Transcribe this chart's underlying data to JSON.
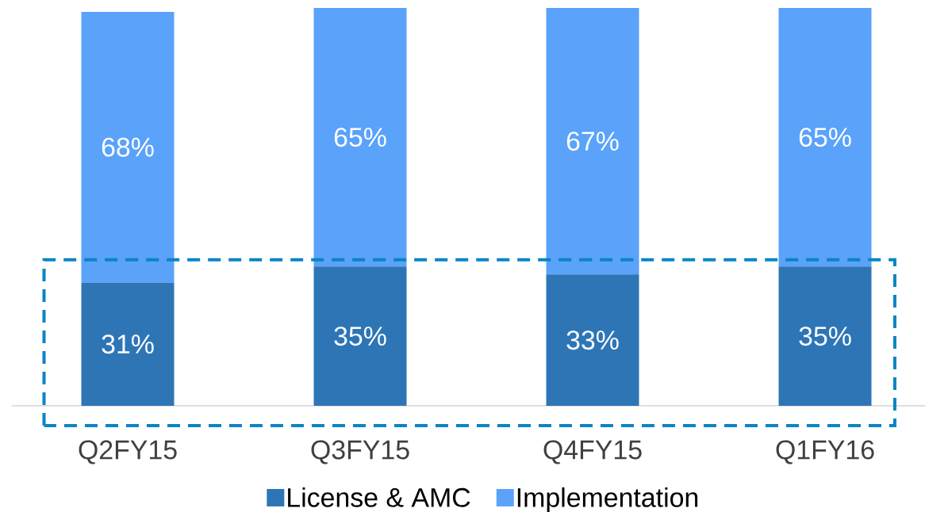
{
  "chart_data": {
    "type": "bar",
    "stacked": true,
    "categories": [
      "Q2FY15",
      "Q3FY15",
      "Q4FY15",
      "Q1FY16"
    ],
    "series": [
      {
        "name": "License & AMC",
        "color": "#2e75b6",
        "values": [
          31,
          35,
          33,
          35
        ],
        "value_labels": [
          "31%",
          "35%",
          "33%",
          "35%"
        ]
      },
      {
        "name": "Implementation",
        "color": "#5aa2fa",
        "values": [
          68,
          65,
          67,
          65
        ],
        "value_labels": [
          "68%",
          "65%",
          "67%",
          "65%"
        ]
      }
    ],
    "ylim": [
      0,
      100
    ],
    "legend": "bottom",
    "tick_labels": "x"
  }
}
